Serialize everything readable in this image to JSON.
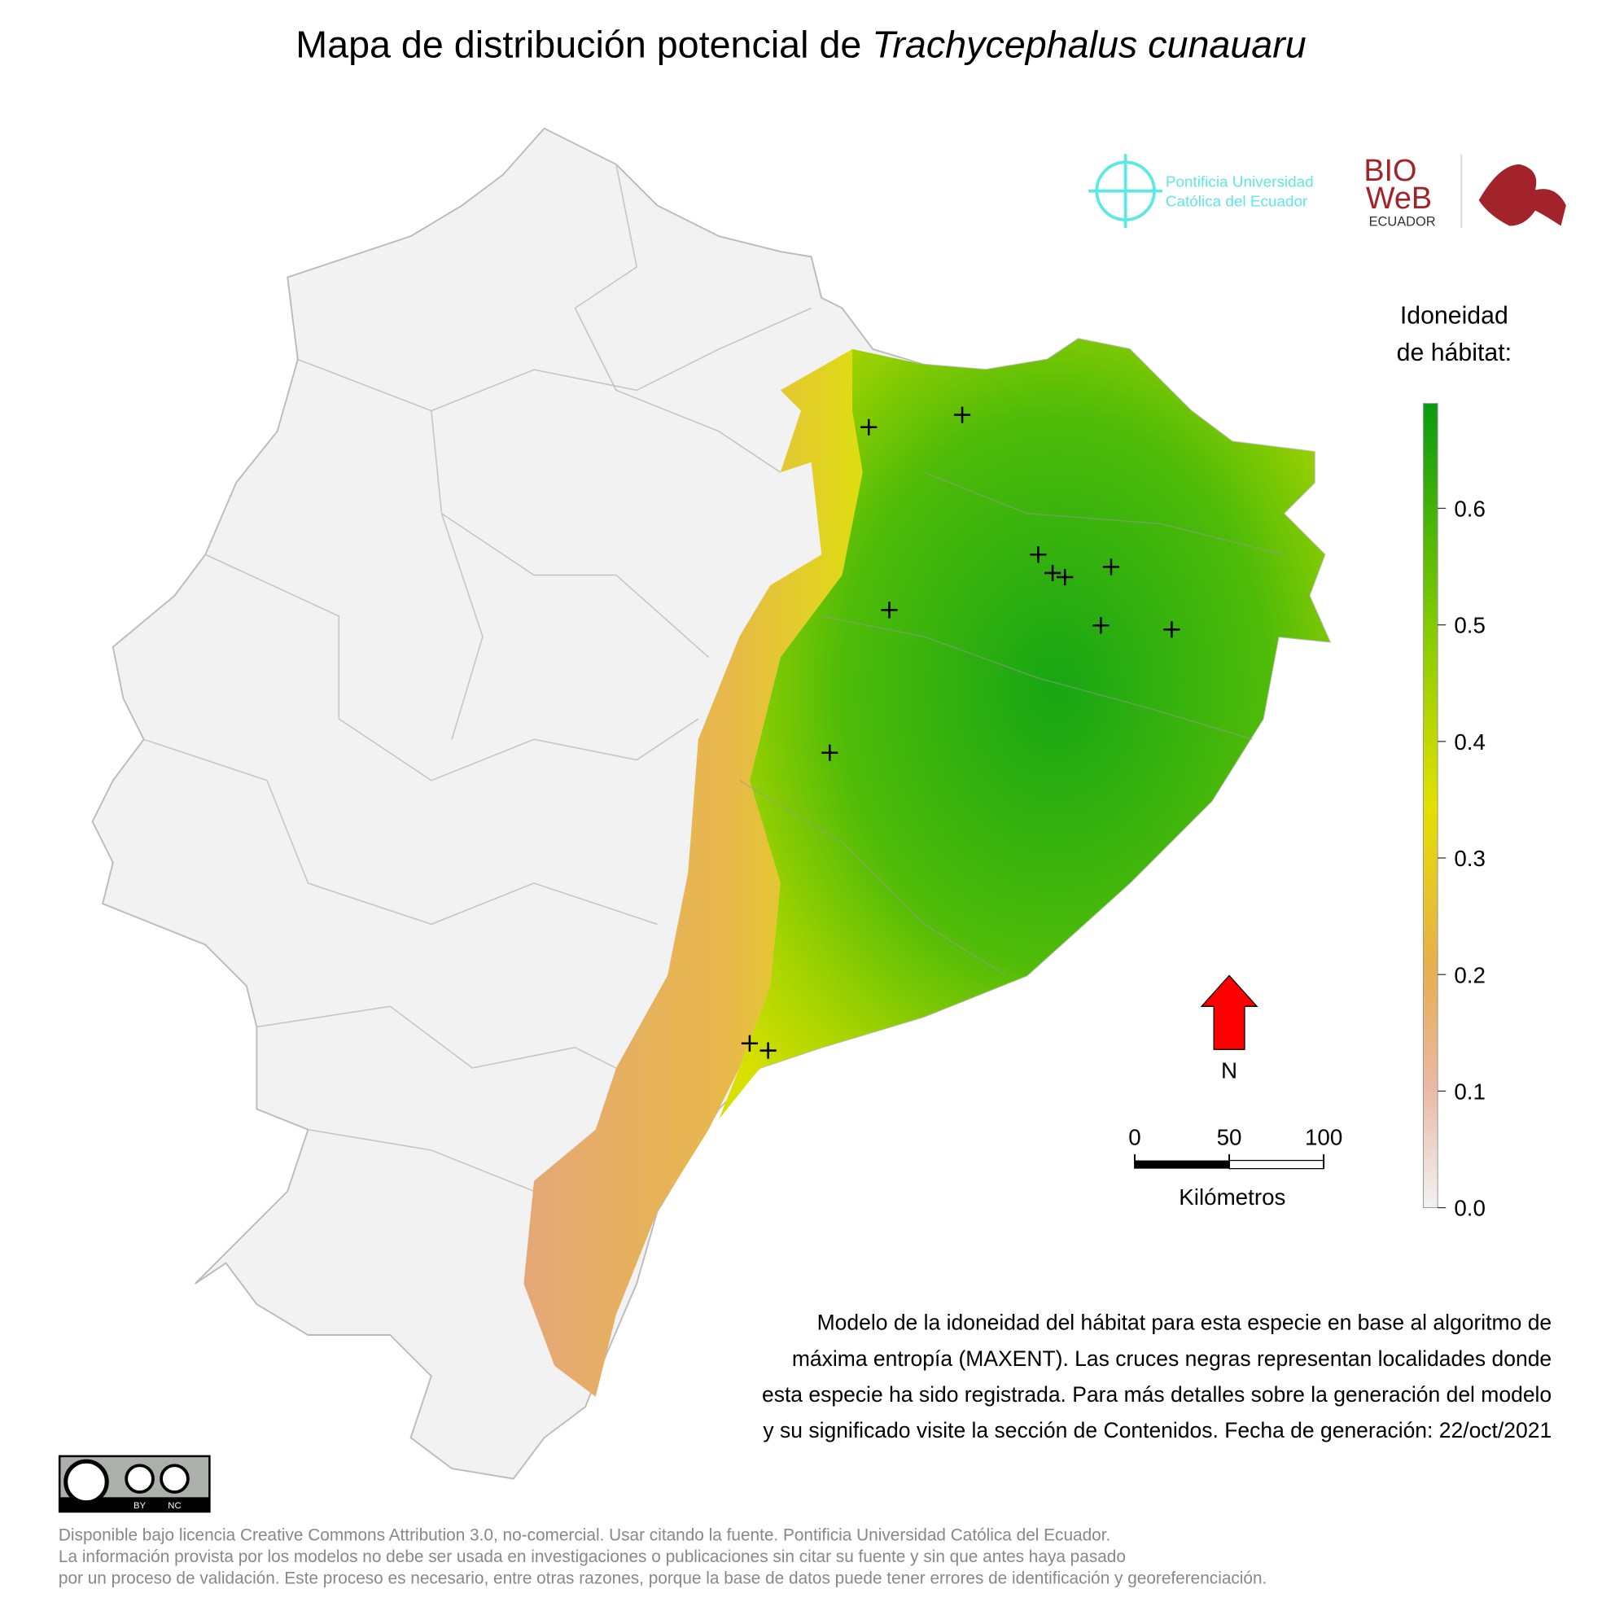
{
  "chart_data": {
    "type": "map",
    "title": "Mapa de distribución potencial de ",
    "title_species": "Trachycephalus cunauaru",
    "legend_title": [
      "Idoneidad",
      "de hábitat:"
    ],
    "colorbar_lim": [
      0,
      0.69
    ],
    "colorbar_ticks": [
      {
        "value": 0,
        "label": "0.0"
      },
      0.1,
      0.2,
      0.3,
      0.4,
      0.5,
      0.6
    ],
    "scale_bar": {
      "ticks": [
        0,
        50,
        100
      ],
      "unit": "Kilómetros"
    },
    "north_label": "N",
    "logo_puce": [
      "Pontificia Universidad",
      "Católica del Ecuador"
    ],
    "logo_bioweb": [
      "BIO",
      "WeB",
      "ECUADOR"
    ],
    "license_badge": [
      "BY",
      "NC"
    ],
    "description": [
      "Modelo de la idoneidad del hábitat para esta especie en base al algoritmo de",
      "máxima entropía (MAXENT). Las cruces negras representan localidades donde",
      "esta especie ha sido registrada. Para más detalles sobre la generación del modelo",
      "y su significado visite la sección de Contenidos. Fecha de generación: 22/oct/2021"
    ],
    "footer": [
      "Disponible bajo licencia Creative Commons Attribution 3.0, no-comercial. Usar citando la fuente. Pontificia Universidad Católica del Ecuador.",
      "La información provista por los modelos no debe ser usada en investigaciones o publicaciones sin citar su fuente y sin que antes haya pasado",
      "por un proceso de validación. Este proceso es necesario, entre otras razones, porque la base de datos puede tener errores de identificación y georeferenciación."
    ]
  }
}
